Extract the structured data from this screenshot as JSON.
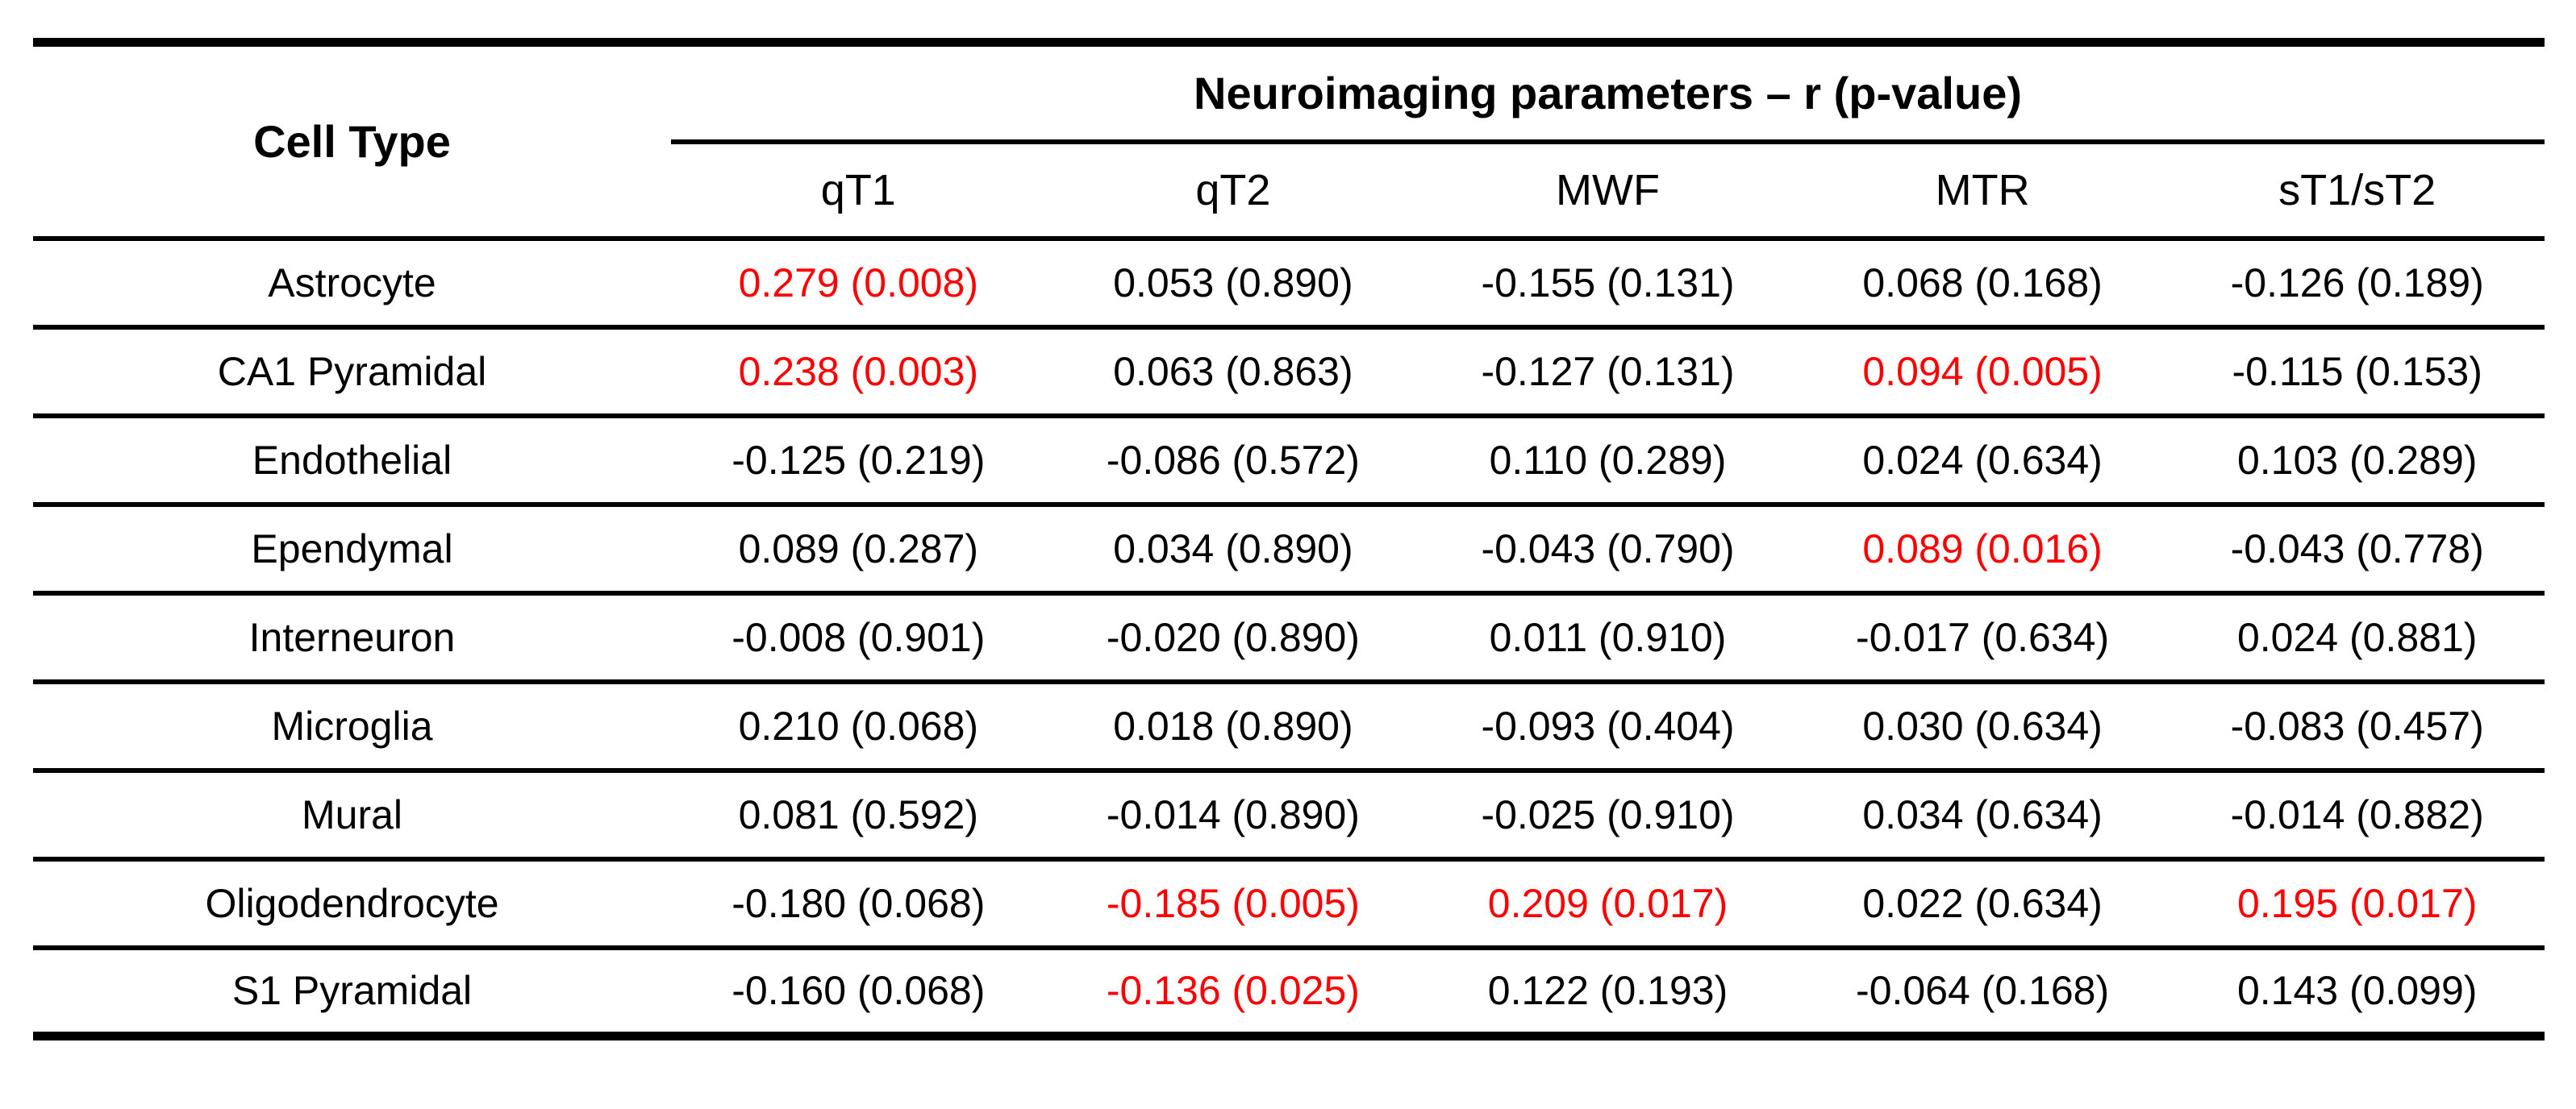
{
  "table": {
    "cell_type_header": "Cell Type",
    "group_header": "Neuroimaging parameters – r (p-value)",
    "columns": [
      "qT1",
      "qT2",
      "MWF",
      "MTR",
      "sT1/sT2"
    ],
    "rows": [
      {
        "cell_type": "Astrocyte",
        "values": [
          {
            "text": "0.279 (0.008)",
            "significant": true
          },
          {
            "text": "0.053 (0.890)",
            "significant": false
          },
          {
            "text": "-0.155 (0.131)",
            "significant": false
          },
          {
            "text": "0.068 (0.168)",
            "significant": false
          },
          {
            "text": "-0.126 (0.189)",
            "significant": false
          }
        ]
      },
      {
        "cell_type": "CA1 Pyramidal",
        "values": [
          {
            "text": "0.238 (0.003)",
            "significant": true
          },
          {
            "text": "0.063 (0.863)",
            "significant": false
          },
          {
            "text": "-0.127 (0.131)",
            "significant": false
          },
          {
            "text": "0.094 (0.005)",
            "significant": true
          },
          {
            "text": "-0.115 (0.153)",
            "significant": false
          }
        ]
      },
      {
        "cell_type": "Endothelial",
        "values": [
          {
            "text": "-0.125 (0.219)",
            "significant": false
          },
          {
            "text": "-0.086 (0.572)",
            "significant": false
          },
          {
            "text": "0.110 (0.289)",
            "significant": false
          },
          {
            "text": "0.024 (0.634)",
            "significant": false
          },
          {
            "text": "0.103 (0.289)",
            "significant": false
          }
        ]
      },
      {
        "cell_type": "Ependymal",
        "values": [
          {
            "text": "0.089 (0.287)",
            "significant": false
          },
          {
            "text": "0.034 (0.890)",
            "significant": false
          },
          {
            "text": "-0.043 (0.790)",
            "significant": false
          },
          {
            "text": "0.089 (0.016)",
            "significant": true
          },
          {
            "text": "-0.043 (0.778)",
            "significant": false
          }
        ]
      },
      {
        "cell_type": "Interneuron",
        "values": [
          {
            "text": "-0.008 (0.901)",
            "significant": false
          },
          {
            "text": "-0.020 (0.890)",
            "significant": false
          },
          {
            "text": "0.011 (0.910)",
            "significant": false
          },
          {
            "text": "-0.017 (0.634)",
            "significant": false
          },
          {
            "text": "0.024 (0.881)",
            "significant": false
          }
        ]
      },
      {
        "cell_type": "Microglia",
        "values": [
          {
            "text": "0.210 (0.068)",
            "significant": false
          },
          {
            "text": "0.018 (0.890)",
            "significant": false
          },
          {
            "text": "-0.093 (0.404)",
            "significant": false
          },
          {
            "text": "0.030 (0.634)",
            "significant": false
          },
          {
            "text": "-0.083 (0.457)",
            "significant": false
          }
        ]
      },
      {
        "cell_type": "Mural",
        "values": [
          {
            "text": "0.081 (0.592)",
            "significant": false
          },
          {
            "text": "-0.014 (0.890)",
            "significant": false
          },
          {
            "text": "-0.025 (0.910)",
            "significant": false
          },
          {
            "text": "0.034 (0.634)",
            "significant": false
          },
          {
            "text": "-0.014 (0.882)",
            "significant": false
          }
        ]
      },
      {
        "cell_type": "Oligodendrocyte",
        "values": [
          {
            "text": "-0.180 (0.068)",
            "significant": false
          },
          {
            "text": "-0.185 (0.005)",
            "significant": true
          },
          {
            "text": "0.209 (0.017)",
            "significant": true
          },
          {
            "text": "0.022 (0.634)",
            "significant": false
          },
          {
            "text": "0.195 (0.017)",
            "significant": true
          }
        ]
      },
      {
        "cell_type": "S1 Pyramidal",
        "values": [
          {
            "text": "-0.160 (0.068)",
            "significant": false
          },
          {
            "text": "-0.136 (0.025)",
            "significant": true
          },
          {
            "text": "0.122 (0.193)",
            "significant": false
          },
          {
            "text": "-0.064 (0.168)",
            "significant": false
          },
          {
            "text": "0.143 (0.099)",
            "significant": false
          }
        ]
      }
    ]
  },
  "colors": {
    "significant": "#ff0000",
    "text": "#000000",
    "rule": "#000000",
    "background": "#ffffff"
  }
}
